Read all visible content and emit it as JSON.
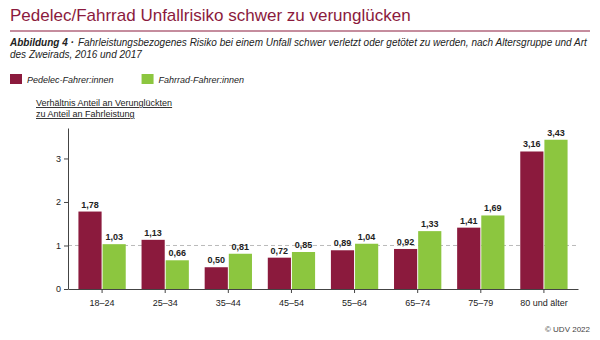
{
  "chart_data": {
    "type": "bar",
    "title": "Pedelec/Fahrrad Unfallrisiko schwer zu verunglücken",
    "subtitle_prefix": "Abbildung 4 ·",
    "subtitle": "Fahrleistungsbezogenes Risiko bei einem Unfall schwer verletzt oder getötet zu werden, nach Altersgruppe und Art des Zweirads, 2016 und 2017",
    "y_label": [
      "Verhältnis Anteil an Verunglückten",
      "zu Anteil an Fahrleistung"
    ],
    "source": "© UDV 2022",
    "categories": [
      "18–24",
      "25–34",
      "35–44",
      "45–54",
      "55–64",
      "65–74",
      "75–79",
      "80 und älter"
    ],
    "series": [
      {
        "name": "Pedelec-Fahrer:innen",
        "color": "#8b1a3d",
        "values": [
          1.78,
          1.13,
          0.5,
          0.72,
          0.89,
          0.92,
          1.41,
          3.16
        ],
        "value_labels": [
          "1,78",
          "1,13",
          "0,50",
          "0,72",
          "0,89",
          "0,92",
          "1,41",
          "3,16"
        ]
      },
      {
        "name": "Fahrrad-Fahrer:innen",
        "color": "#8cc63f",
        "values": [
          1.03,
          0.66,
          0.81,
          0.85,
          1.04,
          1.33,
          1.69,
          3.43
        ],
        "value_labels": [
          "1,03",
          "0,66",
          "0,81",
          "0,85",
          "1,04",
          "1,33",
          "1,69",
          "3,43"
        ]
      }
    ],
    "ylim": [
      0,
      3.7
    ],
    "yticks": [
      0,
      1,
      2,
      3
    ],
    "reference_line": 1,
    "grid": false,
    "data_labels": true,
    "legend": "top-left"
  }
}
